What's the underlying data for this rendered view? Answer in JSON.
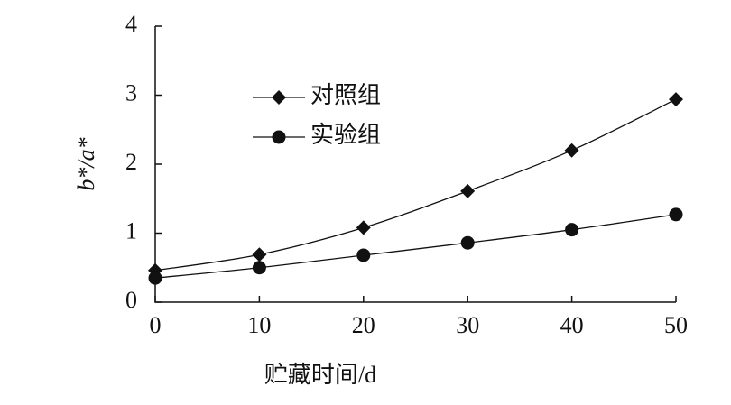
{
  "chart_data": {
    "type": "line",
    "x_label": "贮藏时间/d",
    "y_label": "b*/a*",
    "x": [
      0,
      10,
      20,
      30,
      40,
      50
    ],
    "series": [
      {
        "name": "对照组",
        "color": "#111111",
        "marker": "diamond",
        "values": [
          0.46,
          0.69,
          1.08,
          1.61,
          2.2,
          2.94
        ]
      },
      {
        "name": "实验组",
        "color": "#111111",
        "marker": "circle",
        "values": [
          0.35,
          0.5,
          0.68,
          0.86,
          1.05,
          1.27
        ]
      }
    ],
    "xlim": [
      0,
      50
    ],
    "xticks": [
      0,
      10,
      20,
      30,
      40,
      50
    ],
    "ylim": [
      0,
      4
    ],
    "yticks": [
      0,
      1,
      2,
      3,
      4
    ],
    "grid": false,
    "legend": "upper-left"
  }
}
